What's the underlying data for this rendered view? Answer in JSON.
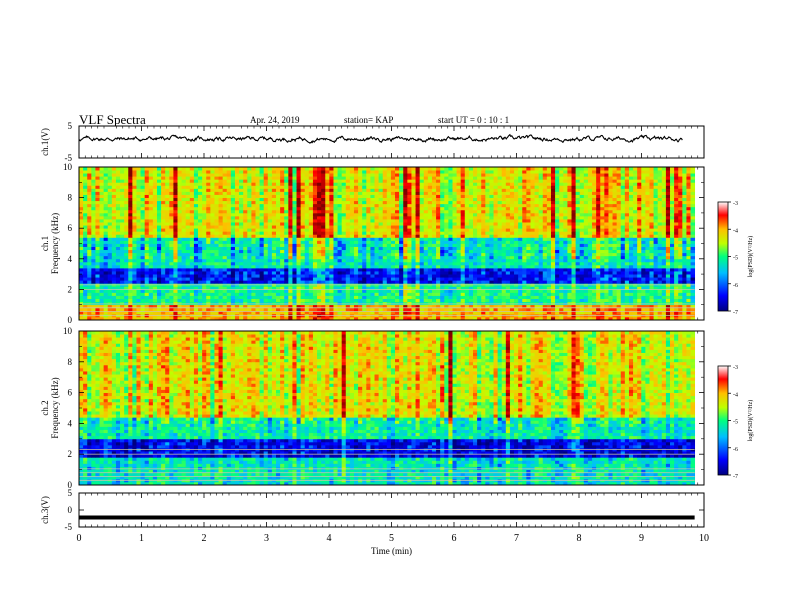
{
  "header": {
    "title": "VLF Spectra",
    "date": "Apr. 24, 2019",
    "station": "station= KAP",
    "start": "start  UT  =   0  : 10 : 1"
  },
  "chart_data": [
    {
      "type": "line",
      "panel": "ch.1 waveform",
      "ylabel": "ch.1(V)",
      "ylim": [
        -5,
        5
      ],
      "yticks": [
        "5",
        "-5"
      ],
      "xlim": [
        0,
        10
      ],
      "note_series": "noisy waveform centered near 1 V, amplitude roughly ±1 V"
    },
    {
      "type": "heatmap",
      "panel": "ch.1 spectrogram",
      "ylabel": "ch.1\nFrequency (kHz)",
      "ylim": [
        0,
        10
      ],
      "yticks": [
        "0",
        "2",
        "4",
        "6",
        "8",
        "10"
      ],
      "xlim": [
        0,
        10
      ],
      "colorbar": {
        "label": "log(PSD)(V²/Hz)",
        "range": [
          -7,
          -3
        ],
        "ticks": [
          "-3",
          "-4",
          "-5",
          "-6",
          "-7"
        ]
      },
      "bands": [
        {
          "from_khz": 0,
          "to_khz": 1.0,
          "level": -4.2
        },
        {
          "from_khz": 1.0,
          "to_khz": 2.5,
          "level": -5.4
        },
        {
          "from_khz": 2.5,
          "to_khz": 3.4,
          "level": -6.5
        },
        {
          "from_khz": 3.4,
          "to_khz": 5.5,
          "level": -5.6
        },
        {
          "from_khz": 5.5,
          "to_khz": 10.0,
          "level": -4.6
        }
      ]
    },
    {
      "type": "heatmap",
      "panel": "ch.2 spectrogram",
      "ylabel": "ch.2\nFrequency (kHz)",
      "ylim": [
        0,
        10
      ],
      "yticks": [
        "0",
        "2",
        "4",
        "6",
        "8",
        "10"
      ],
      "xlim": [
        0,
        10
      ],
      "colorbar": {
        "label": "log(PSD)(V²/Hz)",
        "range": [
          -7,
          -3
        ],
        "ticks": [
          "-3",
          "-4",
          "-5",
          "-6",
          "-7"
        ]
      },
      "bands": [
        {
          "from_khz": 0,
          "to_khz": 1.8,
          "level": -5.6
        },
        {
          "from_khz": 1.8,
          "to_khz": 3.0,
          "level": -6.6
        },
        {
          "from_khz": 3.0,
          "to_khz": 4.5,
          "level": -5.5
        },
        {
          "from_khz": 4.5,
          "to_khz": 10.0,
          "level": -4.6
        }
      ]
    },
    {
      "type": "line",
      "panel": "ch.3 waveform",
      "ylabel": "ch.3(V)",
      "ylim": [
        -5,
        5
      ],
      "yticks": [
        "5",
        "0",
        "-5"
      ],
      "xlim": [
        0,
        10
      ],
      "xticks": [
        "0",
        "1",
        "2",
        "3",
        "4",
        "5",
        "6",
        "7",
        "8",
        "9",
        "10"
      ],
      "xlabel": "Time (min)",
      "constant_value": -2.2
    }
  ],
  "colors": {
    "colormap": [
      "#00007f",
      "#0000ff",
      "#00bfff",
      "#00ff7f",
      "#bfff00",
      "#ffbf00",
      "#ff0000",
      "#7f0000"
    ],
    "line": "#000000",
    "background": "#ffffff"
  }
}
